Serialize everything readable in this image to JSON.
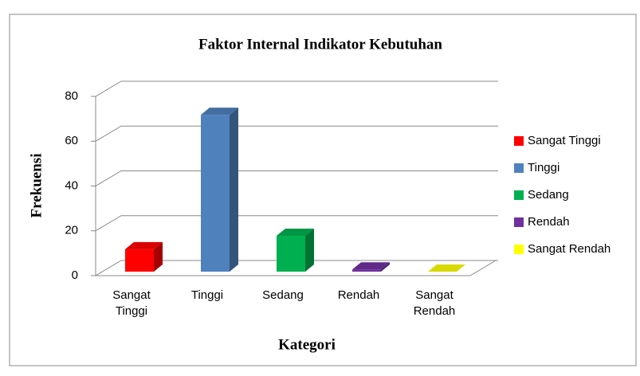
{
  "chart_data": {
    "type": "bar3d",
    "title": "Faktor Internal Indikator Kebutuhan",
    "xlabel": "Kategori",
    "ylabel": "Frekuensi",
    "categories": [
      "Sangat Tinggi",
      "Tinggi",
      "Sedang",
      "Rendah",
      "Sangat Rendah"
    ],
    "values": [
      10,
      70,
      16,
      1,
      0
    ],
    "colors": [
      "#ff0000",
      "#4f81bd",
      "#00b050",
      "#7030a0",
      "#ffff00"
    ],
    "ylim": [
      0,
      80
    ],
    "yticks": [
      0,
      20,
      40,
      60,
      80
    ],
    "grid": true,
    "legend": "right"
  }
}
